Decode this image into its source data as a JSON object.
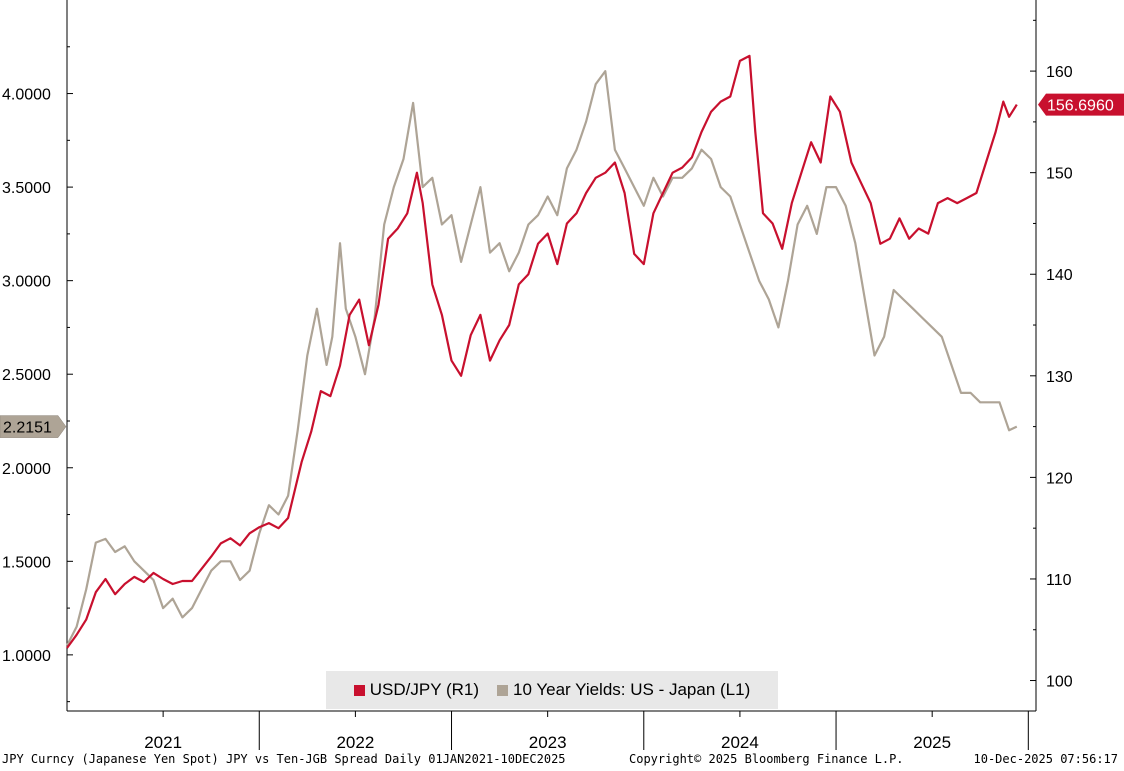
{
  "chart_data": {
    "type": "line",
    "title": "JPY Curncy (Japanese Yen Spot) JPY vs Ten-JGB Spread Daily 01JAN2021-10DEC2025",
    "x_range": [
      "2021-01-01",
      "2025-12-10"
    ],
    "x_tick_labels": [
      "2021",
      "2022",
      "2023",
      "2024",
      "2025"
    ],
    "left_axis": {
      "label": "10 Year Yields: US - Japan (L1)",
      "ylim": [
        0.7,
        4.5
      ],
      "ticks": [
        "1.0000",
        "1.5000",
        "2.0000",
        "2.5000",
        "3.0000",
        "3.5000",
        "4.0000"
      ],
      "tick_values": [
        1.0,
        1.5,
        2.0,
        2.5,
        3.0,
        3.5,
        4.0
      ]
    },
    "right_axis": {
      "label": "USD/JPY (R1)",
      "ylim": [
        97,
        167
      ],
      "ticks": [
        "100",
        "110",
        "120",
        "130",
        "140",
        "150",
        "160"
      ],
      "tick_values": [
        100,
        110,
        120,
        130,
        140,
        150,
        160
      ]
    },
    "series": [
      {
        "name": "USD/JPY (R1)",
        "axis": "right",
        "color": "#c8102e",
        "last_value_label": "156.6960",
        "points": [
          [
            2021.0,
            103.2
          ],
          [
            2021.05,
            104.5
          ],
          [
            2021.1,
            106.0
          ],
          [
            2021.15,
            108.7
          ],
          [
            2021.2,
            110.0
          ],
          [
            2021.25,
            108.5
          ],
          [
            2021.3,
            109.5
          ],
          [
            2021.35,
            110.2
          ],
          [
            2021.4,
            109.7
          ],
          [
            2021.45,
            110.6
          ],
          [
            2021.5,
            110.0
          ],
          [
            2021.55,
            109.5
          ],
          [
            2021.6,
            109.8
          ],
          [
            2021.65,
            109.8
          ],
          [
            2021.7,
            111.0
          ],
          [
            2021.75,
            112.2
          ],
          [
            2021.8,
            113.5
          ],
          [
            2021.85,
            114.0
          ],
          [
            2021.9,
            113.3
          ],
          [
            2021.95,
            114.5
          ],
          [
            2022.0,
            115.1
          ],
          [
            2022.05,
            115.5
          ],
          [
            2022.1,
            115.0
          ],
          [
            2022.15,
            116.0
          ],
          [
            2022.22,
            121.5
          ],
          [
            2022.27,
            124.5
          ],
          [
            2022.32,
            128.5
          ],
          [
            2022.37,
            128.0
          ],
          [
            2022.42,
            131.0
          ],
          [
            2022.47,
            136.0
          ],
          [
            2022.52,
            137.5
          ],
          [
            2022.57,
            133.0
          ],
          [
            2022.62,
            137.0
          ],
          [
            2022.67,
            143.5
          ],
          [
            2022.72,
            144.5
          ],
          [
            2022.77,
            146.0
          ],
          [
            2022.82,
            150.0
          ],
          [
            2022.85,
            147.0
          ],
          [
            2022.9,
            139.0
          ],
          [
            2022.95,
            136.0
          ],
          [
            2023.0,
            131.5
          ],
          [
            2023.05,
            130.0
          ],
          [
            2023.1,
            134.0
          ],
          [
            2023.15,
            136.0
          ],
          [
            2023.2,
            131.5
          ],
          [
            2023.25,
            133.5
          ],
          [
            2023.3,
            135.0
          ],
          [
            2023.35,
            139.0
          ],
          [
            2023.4,
            140.0
          ],
          [
            2023.45,
            143.0
          ],
          [
            2023.5,
            144.0
          ],
          [
            2023.55,
            141.0
          ],
          [
            2023.6,
            145.0
          ],
          [
            2023.65,
            146.0
          ],
          [
            2023.7,
            148.0
          ],
          [
            2023.75,
            149.5
          ],
          [
            2023.8,
            150.0
          ],
          [
            2023.85,
            151.0
          ],
          [
            2023.9,
            148.0
          ],
          [
            2023.95,
            142.0
          ],
          [
            2024.0,
            141.0
          ],
          [
            2024.05,
            146.0
          ],
          [
            2024.1,
            148.0
          ],
          [
            2024.15,
            150.0
          ],
          [
            2024.2,
            150.5
          ],
          [
            2024.25,
            151.5
          ],
          [
            2024.3,
            154.0
          ],
          [
            2024.35,
            156.0
          ],
          [
            2024.4,
            157.0
          ],
          [
            2024.45,
            157.5
          ],
          [
            2024.5,
            161.0
          ],
          [
            2024.55,
            161.5
          ],
          [
            2024.58,
            154.0
          ],
          [
            2024.62,
            146.0
          ],
          [
            2024.67,
            145.0
          ],
          [
            2024.72,
            142.5
          ],
          [
            2024.77,
            147.0
          ],
          [
            2024.82,
            150.0
          ],
          [
            2024.87,
            153.0
          ],
          [
            2024.92,
            151.0
          ],
          [
            2024.97,
            157.5
          ],
          [
            2025.02,
            156.0
          ],
          [
            2025.08,
            151.0
          ],
          [
            2025.13,
            149.0
          ],
          [
            2025.18,
            147.0
          ],
          [
            2025.23,
            143.0
          ],
          [
            2025.28,
            143.5
          ],
          [
            2025.33,
            145.5
          ],
          [
            2025.38,
            143.5
          ],
          [
            2025.43,
            144.5
          ],
          [
            2025.48,
            144.0
          ],
          [
            2025.53,
            147.0
          ],
          [
            2025.58,
            147.5
          ],
          [
            2025.63,
            147.0
          ],
          [
            2025.68,
            147.5
          ],
          [
            2025.73,
            148.0
          ],
          [
            2025.78,
            151.0
          ],
          [
            2025.83,
            154.0
          ],
          [
            2025.87,
            157.0
          ],
          [
            2025.9,
            155.5
          ],
          [
            2025.94,
            156.7
          ]
        ]
      },
      {
        "name": "10 Year Yields: US - Japan (L1)",
        "axis": "left",
        "color": "#aea496",
        "last_value_label": "2.2151",
        "points": [
          [
            2021.0,
            1.05
          ],
          [
            2021.05,
            1.15
          ],
          [
            2021.1,
            1.35
          ],
          [
            2021.15,
            1.6
          ],
          [
            2021.2,
            1.62
          ],
          [
            2021.25,
            1.55
          ],
          [
            2021.3,
            1.58
          ],
          [
            2021.35,
            1.5
          ],
          [
            2021.4,
            1.45
          ],
          [
            2021.45,
            1.4
          ],
          [
            2021.5,
            1.25
          ],
          [
            2021.55,
            1.3
          ],
          [
            2021.6,
            1.2
          ],
          [
            2021.65,
            1.25
          ],
          [
            2021.7,
            1.35
          ],
          [
            2021.75,
            1.45
          ],
          [
            2021.8,
            1.5
          ],
          [
            2021.85,
            1.5
          ],
          [
            2021.9,
            1.4
          ],
          [
            2021.95,
            1.45
          ],
          [
            2022.0,
            1.65
          ],
          [
            2022.05,
            1.8
          ],
          [
            2022.1,
            1.75
          ],
          [
            2022.15,
            1.85
          ],
          [
            2022.2,
            2.2
          ],
          [
            2022.25,
            2.6
          ],
          [
            2022.3,
            2.85
          ],
          [
            2022.35,
            2.55
          ],
          [
            2022.38,
            2.7
          ],
          [
            2022.42,
            3.2
          ],
          [
            2022.45,
            2.85
          ],
          [
            2022.5,
            2.7
          ],
          [
            2022.55,
            2.5
          ],
          [
            2022.6,
            2.8
          ],
          [
            2022.65,
            3.3
          ],
          [
            2022.7,
            3.5
          ],
          [
            2022.75,
            3.65
          ],
          [
            2022.8,
            3.95
          ],
          [
            2022.85,
            3.5
          ],
          [
            2022.9,
            3.55
          ],
          [
            2022.95,
            3.3
          ],
          [
            2023.0,
            3.35
          ],
          [
            2023.05,
            3.1
          ],
          [
            2023.1,
            3.3
          ],
          [
            2023.15,
            3.5
          ],
          [
            2023.2,
            3.15
          ],
          [
            2023.25,
            3.2
          ],
          [
            2023.3,
            3.05
          ],
          [
            2023.35,
            3.15
          ],
          [
            2023.4,
            3.3
          ],
          [
            2023.45,
            3.35
          ],
          [
            2023.5,
            3.45
          ],
          [
            2023.55,
            3.35
          ],
          [
            2023.6,
            3.6
          ],
          [
            2023.65,
            3.7
          ],
          [
            2023.7,
            3.85
          ],
          [
            2023.75,
            4.05
          ],
          [
            2023.8,
            4.12
          ],
          [
            2023.85,
            3.7
          ],
          [
            2023.9,
            3.6
          ],
          [
            2023.95,
            3.5
          ],
          [
            2024.0,
            3.4
          ],
          [
            2024.05,
            3.55
          ],
          [
            2024.1,
            3.45
          ],
          [
            2024.15,
            3.55
          ],
          [
            2024.2,
            3.55
          ],
          [
            2024.25,
            3.6
          ],
          [
            2024.3,
            3.7
          ],
          [
            2024.35,
            3.65
          ],
          [
            2024.4,
            3.5
          ],
          [
            2024.45,
            3.45
          ],
          [
            2024.5,
            3.3
          ],
          [
            2024.55,
            3.15
          ],
          [
            2024.6,
            3.0
          ],
          [
            2024.65,
            2.9
          ],
          [
            2024.7,
            2.75
          ],
          [
            2024.75,
            3.0
          ],
          [
            2024.8,
            3.3
          ],
          [
            2024.85,
            3.4
          ],
          [
            2024.9,
            3.25
          ],
          [
            2024.95,
            3.5
          ],
          [
            2025.0,
            3.5
          ],
          [
            2025.05,
            3.4
          ],
          [
            2025.1,
            3.2
          ],
          [
            2025.15,
            2.9
          ],
          [
            2025.2,
            2.6
          ],
          [
            2025.25,
            2.7
          ],
          [
            2025.3,
            2.95
          ],
          [
            2025.35,
            2.9
          ],
          [
            2025.4,
            2.85
          ],
          [
            2025.45,
            2.8
          ],
          [
            2025.5,
            2.75
          ],
          [
            2025.55,
            2.7
          ],
          [
            2025.6,
            2.55
          ],
          [
            2025.65,
            2.4
          ],
          [
            2025.7,
            2.4
          ],
          [
            2025.75,
            2.35
          ],
          [
            2025.8,
            2.35
          ],
          [
            2025.85,
            2.35
          ],
          [
            2025.9,
            2.2
          ],
          [
            2025.94,
            2.22
          ]
        ]
      }
    ],
    "legend": {
      "position": "bottom-center",
      "entries": [
        "USD/JPY (R1)",
        "10 Year Yields: US - Japan (L1)"
      ]
    },
    "grid": false
  },
  "footer": {
    "left": "JPY Curncy (Japanese Yen Spot) JPY vs Ten-JGB Spread Daily 01JAN2021-10DEC2025",
    "center": "Copyright© 2025 Bloomberg Finance L.P.",
    "right": "10-Dec-2025 07:56:17"
  },
  "colors": {
    "usdjpy": "#c8102e",
    "spread": "#aea496",
    "legend_bg": "#e8e8e8"
  }
}
